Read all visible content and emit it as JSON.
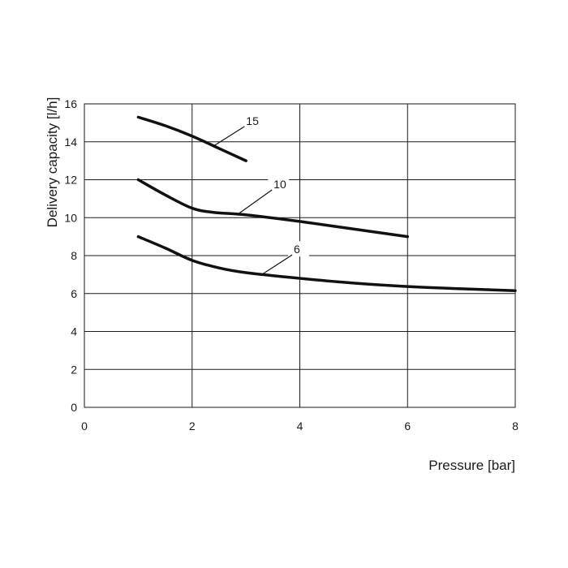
{
  "chart_data": {
    "type": "line",
    "xlabel": "Pressure [bar]",
    "ylabel": "Delivery capacity [l/h]",
    "xlim": [
      0,
      8
    ],
    "ylim": [
      0,
      16
    ],
    "x_ticks": [
      "0",
      "2",
      "4",
      "6",
      "8"
    ],
    "y_ticks": [
      "0",
      "2",
      "4",
      "6",
      "8",
      "10",
      "12",
      "14",
      "16"
    ],
    "grid": true,
    "series": [
      {
        "name": "15",
        "x": [
          1,
          1.5,
          2,
          2.5,
          3
        ],
        "y": [
          15.3,
          14.85,
          14.3,
          13.65,
          13.0
        ]
      },
      {
        "name": "10",
        "x": [
          1,
          1.5,
          2,
          2.4,
          3,
          4,
          5,
          6
        ],
        "y": [
          12.0,
          11.2,
          10.5,
          10.28,
          10.15,
          9.8,
          9.4,
          9.0
        ]
      },
      {
        "name": "6",
        "x": [
          1,
          1.5,
          2,
          2.5,
          3,
          4,
          5,
          6,
          7,
          8
        ],
        "y": [
          9.0,
          8.4,
          7.75,
          7.35,
          7.1,
          6.8,
          6.55,
          6.37,
          6.25,
          6.15
        ]
      }
    ]
  }
}
